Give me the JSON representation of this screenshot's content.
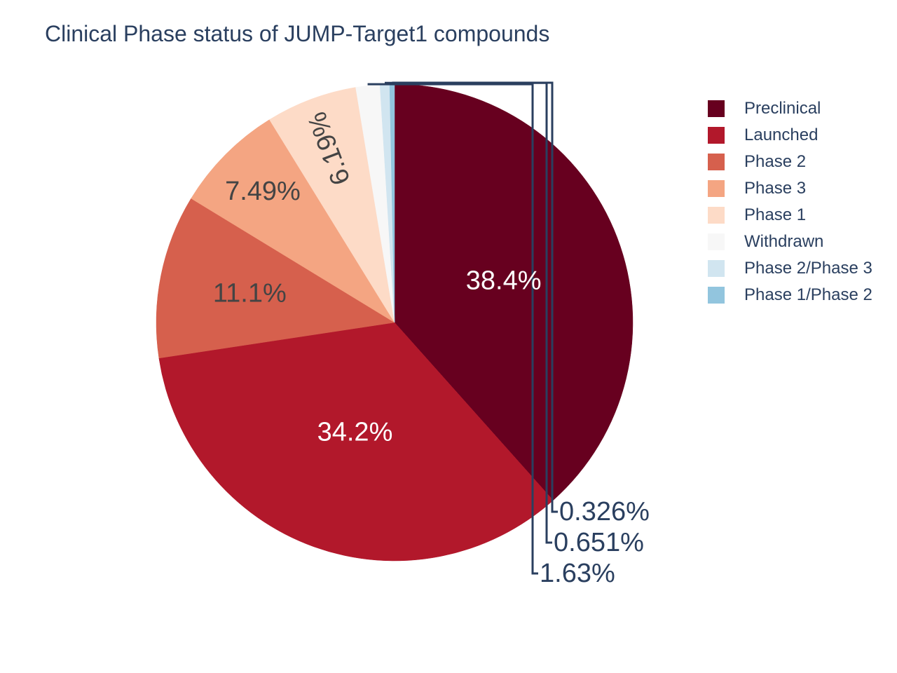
{
  "chart_data": {
    "type": "pie",
    "title": "Clinical Phase status of JUMP-Target1 compounds",
    "labels": [
      "Preclinical",
      "Launched",
      "Phase 2",
      "Phase 3",
      "Phase 1",
      "Withdrawn",
      "Phase 2/Phase 3",
      "Phase 1/Phase 2"
    ],
    "values": [
      38.4,
      34.2,
      11.1,
      7.49,
      6.19,
      1.63,
      0.651,
      0.326
    ],
    "text_labels": [
      "38.4%",
      "34.2%",
      "11.1%",
      "7.49%",
      "6.19%",
      "1.63%",
      "0.651%",
      "0.326%"
    ],
    "colors": [
      "#67001f",
      "#b2182b",
      "#d6604d",
      "#f4a582",
      "#fddbc7",
      "#f7f7f7",
      "#d1e5f0",
      "#92c5de"
    ],
    "label_colors": [
      "#ffffff",
      "#ffffff",
      "#444444",
      "#444444",
      "#444444",
      "#2a3f5f",
      "#2a3f5f",
      "#2a3f5f"
    ],
    "direction": "clockwise",
    "start": "12 o'clock",
    "legend_placement": "top-right"
  }
}
